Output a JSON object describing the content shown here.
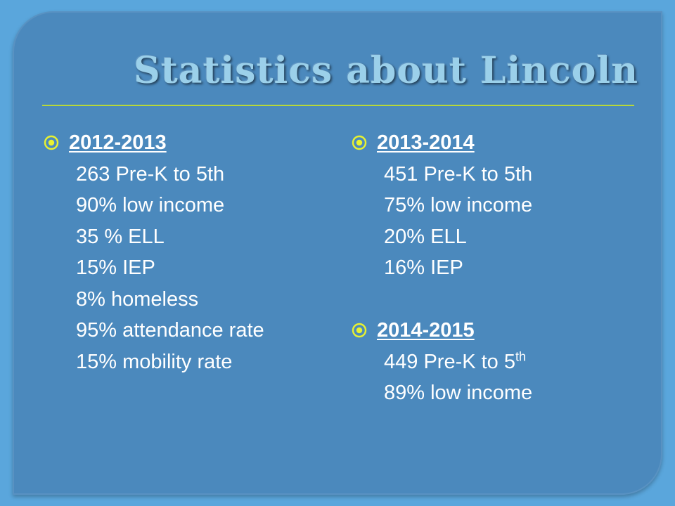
{
  "slide": {
    "title": "Statistics about Lincoln",
    "sections": [
      {
        "year": "2012-2013",
        "lines": [
          "263 Pre-K to 5th",
          "90% low income",
          "35 % ELL",
          "15% IEP",
          "8% homeless",
          "95% attendance rate",
          "15% mobility rate"
        ]
      },
      {
        "year": "2013-2014",
        "lines": [
          "451 Pre-K to 5th",
          "75% low income",
          "20% ELL",
          "16% IEP"
        ]
      },
      {
        "year": "2014-2015",
        "line1_text": "449 Pre-K to 5",
        "line1_sup": "th",
        "line2": "89% low income"
      }
    ]
  },
  "colors": {
    "background": "#5aa6dc",
    "panel": "#4b89bd",
    "title": "#9bd0ea",
    "rule": "#b8d838",
    "bullet": "#e8f230",
    "text": "#ffffff"
  },
  "icons": {
    "bullet": "target-bullet-icon"
  }
}
